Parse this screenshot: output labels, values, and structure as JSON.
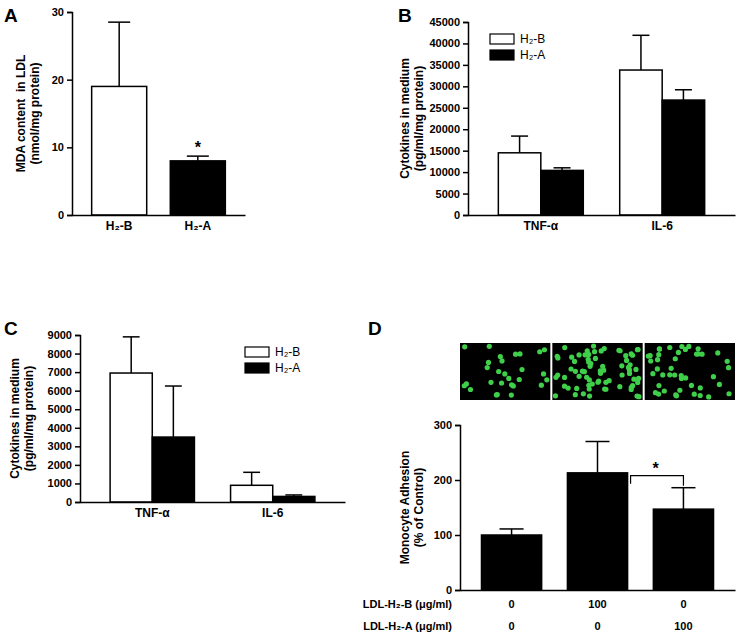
{
  "chart_data": [
    {
      "type": "bar",
      "title": "A",
      "categories": [
        "H₂-B",
        "H₂-A"
      ],
      "values": [
        19,
        8
      ],
      "errors": [
        9.5,
        0.7
      ],
      "colors": [
        "#ffffff",
        "#000000"
      ],
      "ylim": [
        0,
        30
      ],
      "yticks": [
        0,
        10,
        20,
        30
      ],
      "y_label": [
        "MDA content  in LDL",
        "(nmol/mg protein)"
      ],
      "annotations": [
        {
          "text": "*",
          "category": 1
        }
      ]
    },
    {
      "type": "bar",
      "title": "B",
      "categories": [
        "TNF-α",
        "IL-6"
      ],
      "series": [
        {
          "name": "H₂-B",
          "color": "#ffffff",
          "values": [
            14500,
            33800
          ],
          "errors": [
            3900,
            8100
          ]
        },
        {
          "name": "H₂-A",
          "color": "#000000",
          "values": [
            10400,
            26800
          ],
          "errors": [
            600,
            2400
          ]
        }
      ],
      "ylim": [
        0,
        45000
      ],
      "yticks": [
        0,
        5000,
        10000,
        15000,
        20000,
        25000,
        30000,
        35000,
        40000,
        45000
      ],
      "y_label": [
        "Cytokines in medium",
        "(pg/ml/mg protein)"
      ],
      "legend": "upper left"
    },
    {
      "type": "bar",
      "title": "C",
      "categories": [
        "TNF-α",
        "IL-6"
      ],
      "series": [
        {
          "name": "H₂-B",
          "color": "#ffffff",
          "values": [
            6950,
            900
          ],
          "errors": [
            1950,
            700
          ]
        },
        {
          "name": "H₂-A",
          "color": "#000000",
          "values": [
            3500,
            300
          ],
          "errors": [
            2750,
            80
          ]
        }
      ],
      "ylim": [
        0,
        9000
      ],
      "yticks": [
        0,
        1000,
        2000,
        3000,
        4000,
        5000,
        6000,
        7000,
        8000,
        9000
      ],
      "y_label": [
        "Cytokines in medium",
        "(pg/ml/mg protein)"
      ],
      "legend": "upper right"
    },
    {
      "type": "bar",
      "title": "D",
      "categories": [
        null,
        null,
        null
      ],
      "values": [
        100,
        213,
        147
      ],
      "errors": [
        11,
        57,
        39
      ],
      "color": "#000000",
      "ylim": [
        0,
        300
      ],
      "yticks": [
        0,
        100,
        200,
        300
      ],
      "y_label": [
        "Monocyte Adhesion",
        "(% of Control)"
      ],
      "annotations": [
        {
          "text": "*",
          "from": 1,
          "to": 2
        }
      ],
      "dose_rows": [
        {
          "label": "LDL-H₂-B (μg/ml)",
          "values": [
            0,
            100,
            0
          ]
        },
        {
          "label": "LDL-H₂-A (μg/ml)",
          "values": [
            0,
            0,
            100
          ]
        }
      ]
    }
  ]
}
